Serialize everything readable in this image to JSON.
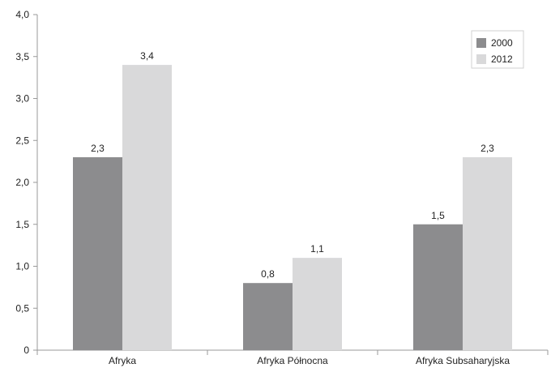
{
  "chart_data": {
    "type": "bar",
    "categories": [
      "Afryka",
      "Afryka Północna",
      "Afryka Subsaharyjska"
    ],
    "series": [
      {
        "name": "2000",
        "values": [
          2.3,
          0.8,
          1.5
        ],
        "labels": [
          "2,3",
          "0,8",
          "1,5"
        ],
        "color": "#8c8c8e"
      },
      {
        "name": "2012",
        "values": [
          3.4,
          1.1,
          2.3
        ],
        "labels": [
          "3,4",
          "1,1",
          "2,3"
        ],
        "color": "#d9d9da"
      }
    ],
    "ylim": [
      0,
      4
    ],
    "yticks": [
      {
        "value": 0,
        "label": "0"
      },
      {
        "value": 0.5,
        "label": "0,5"
      },
      {
        "value": 1,
        "label": "1,0"
      },
      {
        "value": 1.5,
        "label": "1,5"
      },
      {
        "value": 2,
        "label": "2,0"
      },
      {
        "value": 2.5,
        "label": "2,5"
      },
      {
        "value": 3,
        "label": "3,0"
      },
      {
        "value": 3.5,
        "label": "3,5"
      },
      {
        "value": 4,
        "label": "4,0"
      }
    ],
    "title": "",
    "xlabel": "",
    "ylabel": "",
    "grid": false,
    "legend_position": "top-right"
  }
}
